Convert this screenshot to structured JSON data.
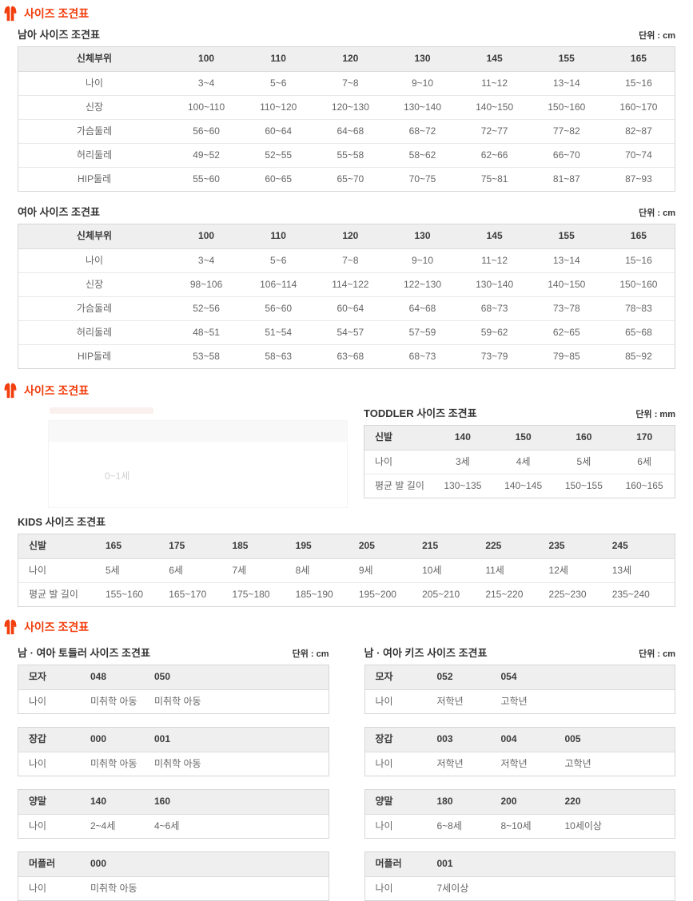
{
  "colors": {
    "accent": "#f23d0c",
    "header_bg": "#efefef",
    "border": "#d6d6d6",
    "text": "#666666",
    "dark_text": "#333333"
  },
  "section1": {
    "header": "사이즈 조견표",
    "boys": {
      "title": "남아 사이즈 조견표",
      "unit": "단위 : cm",
      "table": {
        "header": [
          "신체부위",
          "100",
          "110",
          "120",
          "130",
          "145",
          "155",
          "165"
        ],
        "rows": [
          [
            "나이",
            "3~4",
            "5~6",
            "7~8",
            "9~10",
            "11~12",
            "13~14",
            "15~16"
          ],
          [
            "신장",
            "100~110",
            "110~120",
            "120~130",
            "130~140",
            "140~150",
            "150~160",
            "160~170"
          ],
          [
            "가슴둘레",
            "56~60",
            "60~64",
            "64~68",
            "68~72",
            "72~77",
            "77~82",
            "82~87"
          ],
          [
            "허리둘레",
            "49~52",
            "52~55",
            "55~58",
            "58~62",
            "62~66",
            "66~70",
            "70~74"
          ],
          [
            "HIP둘레",
            "55~60",
            "60~65",
            "65~70",
            "70~75",
            "75~81",
            "81~87",
            "87~93"
          ]
        ]
      }
    },
    "girls": {
      "title": "여아 사이즈 조견표",
      "unit": "단위 : cm",
      "table": {
        "header": [
          "신체부위",
          "100",
          "110",
          "120",
          "130",
          "145",
          "155",
          "165"
        ],
        "rows": [
          [
            "나이",
            "3~4",
            "5~6",
            "7~8",
            "9~10",
            "11~12",
            "13~14",
            "15~16"
          ],
          [
            "신장",
            "98~106",
            "106~114",
            "114~122",
            "122~130",
            "130~140",
            "140~150",
            "150~160"
          ],
          [
            "가슴둘레",
            "52~56",
            "56~60",
            "60~64",
            "64~68",
            "68~73",
            "73~78",
            "78~83"
          ],
          [
            "허리둘레",
            "48~51",
            "51~54",
            "54~57",
            "57~59",
            "59~62",
            "62~65",
            "65~68"
          ],
          [
            "HIP둘레",
            "53~58",
            "58~63",
            "63~68",
            "68~73",
            "73~79",
            "79~85",
            "85~92"
          ]
        ]
      }
    }
  },
  "section2": {
    "header": "사이즈 조견표",
    "ghost": {
      "visible_text": "0~1세"
    },
    "toddler": {
      "title": "TODDLER 사이즈 조견표",
      "unit": "단위 : mm",
      "table": {
        "header": [
          "신발",
          "140",
          "150",
          "160",
          "170"
        ],
        "rows": [
          [
            "나이",
            "3세",
            "4세",
            "5세",
            "6세"
          ],
          [
            "평균 발 길이",
            "130~135",
            "140~145",
            "150~155",
            "160~165"
          ]
        ]
      }
    },
    "kids": {
      "title": "KIDS 사이즈 조견표",
      "table": {
        "header": [
          "신발",
          "165",
          "175",
          "185",
          "195",
          "205",
          "215",
          "225",
          "235",
          "245"
        ],
        "rows": [
          [
            "나이",
            "5세",
            "6세",
            "7세",
            "8세",
            "9세",
            "10세",
            "11세",
            "12세",
            "13세"
          ],
          [
            "평균 발 길이",
            "155~160",
            "165~170",
            "175~180",
            "185~190",
            "195~200",
            "205~210",
            "215~220",
            "225~230",
            "235~240"
          ]
        ]
      }
    }
  },
  "section3": {
    "header": "사이즈 조견표",
    "left": {
      "title": "남 · 여아 토들러 사이즈 조견표",
      "unit": "단위 : cm",
      "tables": [
        {
          "header": [
            "모자",
            "048",
            "050"
          ],
          "rows": [
            [
              "나이",
              "미취학 아동",
              "미취학 아동"
            ]
          ]
        },
        {
          "header": [
            "장갑",
            "000",
            "001"
          ],
          "rows": [
            [
              "나이",
              "미취학 아동",
              "미취학 아동"
            ]
          ]
        },
        {
          "header": [
            "양말",
            "140",
            "160"
          ],
          "rows": [
            [
              "나이",
              "2~4세",
              "4~6세"
            ]
          ]
        },
        {
          "header": [
            "머플러",
            "000"
          ],
          "rows": [
            [
              "나이",
              "미취학 아동"
            ]
          ]
        }
      ]
    },
    "right": {
      "title": "남 · 여아 키즈 사이즈 조견표",
      "unit": "단위 : cm",
      "tables": [
        {
          "header": [
            "모자",
            "052",
            "054"
          ],
          "rows": [
            [
              "나이",
              "저학년",
              "고학년"
            ]
          ]
        },
        {
          "header": [
            "장갑",
            "003",
            "004",
            "005"
          ],
          "rows": [
            [
              "나이",
              "저학년",
              "저학년",
              "고학년"
            ]
          ]
        },
        {
          "header": [
            "양말",
            "180",
            "200",
            "220"
          ],
          "rows": [
            [
              "나이",
              "6~8세",
              "8~10세",
              "10세이상"
            ]
          ]
        },
        {
          "header": [
            "머플러",
            "001"
          ],
          "rows": [
            [
              "나이",
              "7세이상"
            ]
          ]
        }
      ]
    }
  }
}
